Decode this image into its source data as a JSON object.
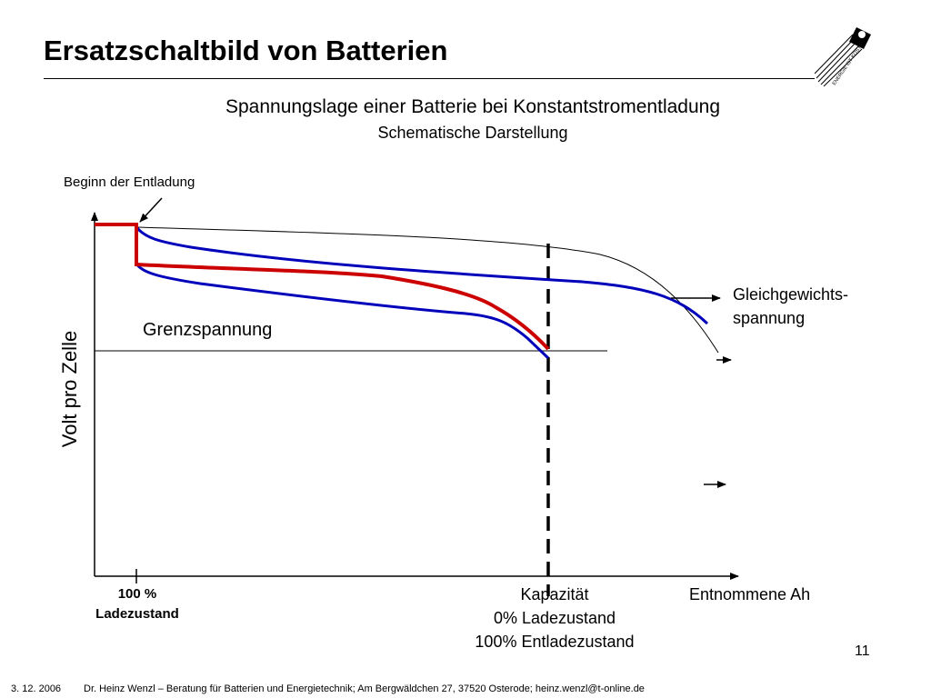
{
  "page": {
    "title": "Ersatzschaltbild von Batterien",
    "page_number": "11"
  },
  "chart": {
    "title": "Spannungslage einer Batterie bei Konstantstromentladung",
    "subtitle": "Schematische Darstellung",
    "ylabel": "Volt pro Zelle",
    "xlabel": "Entnommene Ah",
    "annotations": {
      "start": "Beginn der Entladung",
      "limit": "Grenzspannung",
      "equilibrium_line1": "Gleichgewichts-",
      "equilibrium_line2": "spannung",
      "full_line1": "100 %",
      "full_line2": "Ladezustand",
      "capacity_line1": "Kapazität",
      "capacity_line2": "0% Ladezustand",
      "capacity_line3": "100% Entladezustand"
    }
  },
  "colors": {
    "red_curve": "#cc0000",
    "blue_curve": "#0000bb",
    "axis": "#000000"
  },
  "logo": {
    "text": "ENERGIE IST KOSTBAR",
    "icon": "energie-logo-icon"
  },
  "footer": {
    "date": "3. 12. 2006",
    "text": "Dr. Heinz Wenzl – Beratung für Batterien und Energietechnik; Am Bergwäldchen 27, 37520 Osterode; heinz.wenzl@t-online.de"
  }
}
